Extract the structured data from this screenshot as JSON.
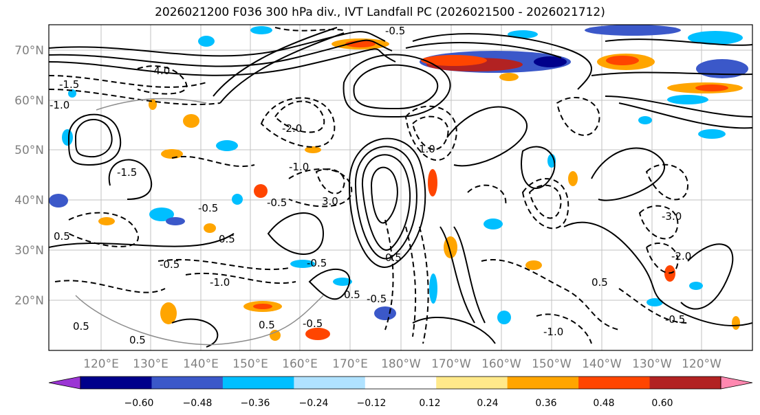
{
  "title": "2026021200 F036 300 hPa div., IVT Landfall PC (2026021500 - 2026021712)",
  "lat_labels": [
    "70°N",
    "60°N",
    "50°N",
    "40°N",
    "30°N",
    "20°N"
  ],
  "lon_labels": [
    "120°E",
    "130°E",
    "140°E",
    "150°E",
    "160°E",
    "170°E",
    "180°W",
    "170°W",
    "160°W",
    "150°W",
    "140°W",
    "130°W",
    "120°W"
  ],
  "colorbar": {
    "colors": [
      "#9b35d4",
      "#00008b",
      "#3b58c9",
      "#00bfff",
      "#b0e2ff",
      "#ffffff",
      "#ffe98a",
      "#ffa500",
      "#ff4500",
      "#b22222",
      "#ff88b0"
    ],
    "tick_labels": [
      "−0.60",
      "−0.48",
      "−0.36",
      "−0.24",
      "−0.12",
      "0.12",
      "0.24",
      "0.36",
      "0.48",
      "0.60"
    ]
  },
  "contour_labels": [
    "0.5",
    "-4.0",
    "-1.0",
    "-1.5",
    "-2.0",
    "-1.0",
    "-0.5",
    "0.5",
    "-0.5",
    "-1.0",
    "0.5",
    "0.5",
    "-0.5",
    "3.0",
    "0.5",
    "-0.5",
    "-3.0",
    "-2.0",
    "0.5",
    "1.0",
    "-0.5",
    "-0.5",
    "0.5",
    "-0.5",
    "-1.0",
    "-0.5",
    "-1.5",
    "0.5"
  ]
}
